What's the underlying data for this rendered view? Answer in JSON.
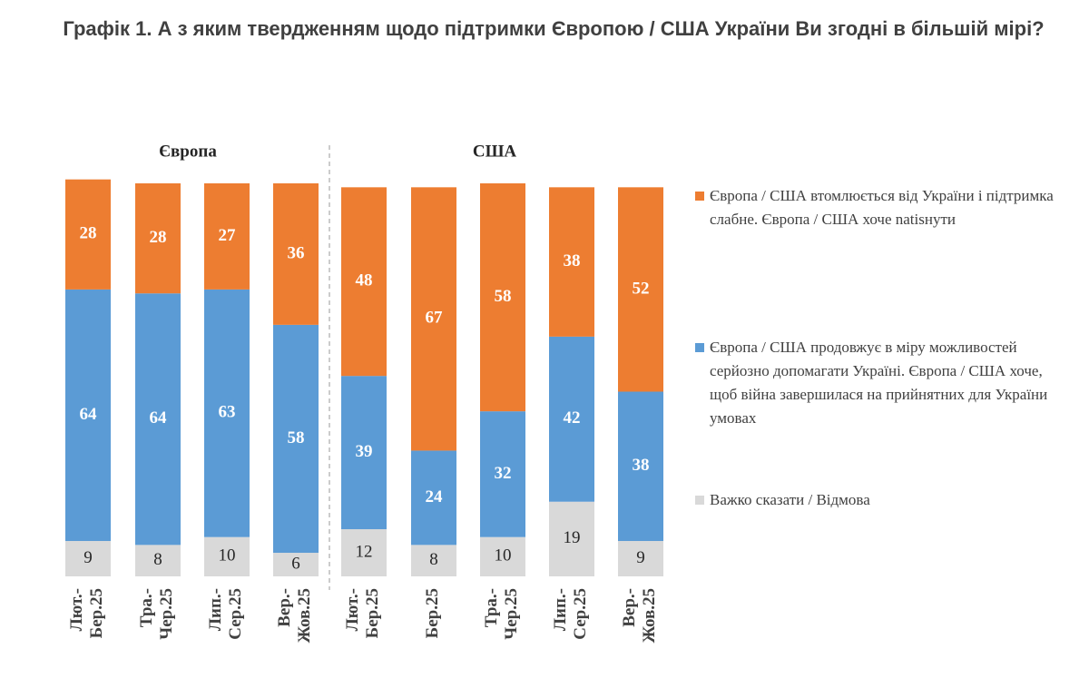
{
  "chart_data": {
    "type": "stacked-bar",
    "title": "Графік 1. А з яким твердженням щодо підтримки Європою / США України Ви згодні в більшій мірі?",
    "groups": [
      {
        "name": "Європа",
        "categories": [
          "Лют.-Бер.25",
          "Тра.-Чер.25",
          "Лип.-Сер.25",
          "Вер.-Жов.25"
        ]
      },
      {
        "name": "США",
        "categories": [
          "Лют.-Бер.25",
          "Бер.25",
          "Тра.-Чер.25",
          "Лип.-Сер.25",
          "Вер.-Жов.25"
        ]
      }
    ],
    "series": [
      {
        "name": "Європа / США втомлюється від України і підтримка слабне. Європа / США хоче natisнути",
        "color": "#ED7D31",
        "values": [
          28,
          28,
          27,
          36,
          48,
          67,
          58,
          38,
          52
        ]
      },
      {
        "name": "Європа / США продовжує в міру можливостей серйозно допомагати Україні. Європа / США хоче, щоб війна завершилася на прийнятних для України умовах",
        "color": "#5B9BD5",
        "values": [
          64,
          64,
          63,
          58,
          39,
          24,
          32,
          42,
          38
        ]
      },
      {
        "name": "Важко сказати / Відмова",
        "color": "#D9D9D9",
        "values": [
          9,
          8,
          10,
          6,
          12,
          8,
          10,
          19,
          9
        ]
      }
    ]
  }
}
